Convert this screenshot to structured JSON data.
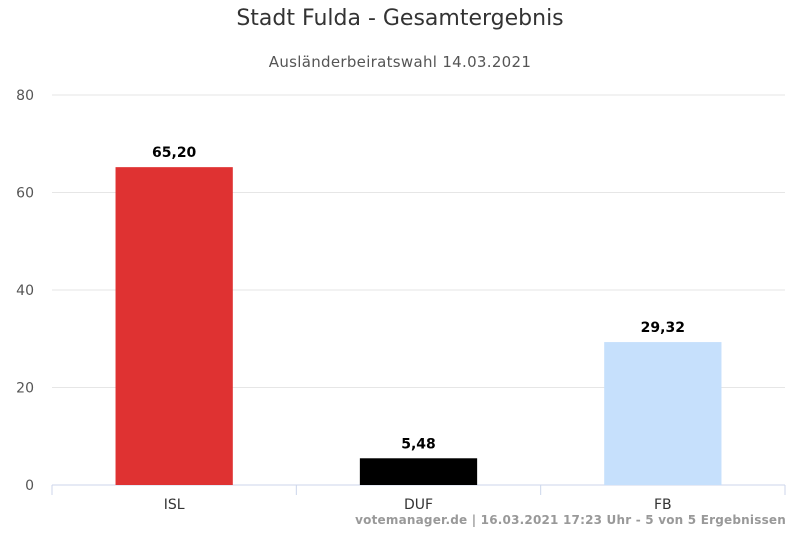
{
  "chart_data": {
    "type": "bar",
    "title": "Stadt Fulda - Gesamtergebnis",
    "subtitle": "Ausländerbeiratswahl 14.03.2021",
    "categories": [
      "ISL",
      "DUF",
      "FB"
    ],
    "values": [
      65.2,
      5.48,
      29.32
    ],
    "value_labels": [
      "65,20",
      "5,48",
      "29,32"
    ],
    "bar_colors": [
      "#df3232",
      "#000000",
      "#c6e0fc"
    ],
    "ylim": [
      0,
      80
    ],
    "yticks": [
      0,
      20,
      40,
      60,
      80
    ],
    "ytick_labels": [
      "0",
      "20",
      "40",
      "60",
      "80"
    ],
    "grid": true,
    "xlabel": "",
    "ylabel": ""
  },
  "credits": "votemanager.de | 16.03.2021 17:23 Uhr - 5 von 5 Ergebnissen"
}
